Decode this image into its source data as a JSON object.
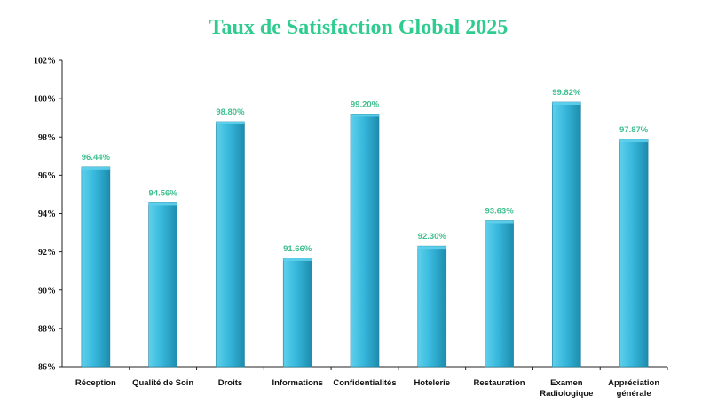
{
  "chart_data": {
    "type": "bar",
    "title": "Taux de Satisfaction Global 2025",
    "categories": [
      [
        "Réception"
      ],
      [
        "Qualité de Soin"
      ],
      [
        "Droits"
      ],
      [
        "Informations"
      ],
      [
        "Confidentialités"
      ],
      [
        "Hotelerie"
      ],
      [
        "Restauration"
      ],
      [
        "Examen",
        "Radiologique"
      ],
      [
        "Appréciation",
        "générale"
      ]
    ],
    "values": [
      96.44,
      94.56,
      98.8,
      91.66,
      99.2,
      92.3,
      93.63,
      99.82,
      97.87
    ],
    "data_labels": [
      "96.44%",
      "94.56%",
      "98.80%",
      "91.66%",
      "99.20%",
      "92.30%",
      "93.63%",
      "99.82%",
      "97.87%"
    ],
    "ylim": [
      86,
      102
    ],
    "yticks": [
      86,
      88,
      90,
      92,
      94,
      96,
      98,
      100,
      102
    ],
    "ytick_labels": [
      "86%",
      "88%",
      "90%",
      "92%",
      "94%",
      "96%",
      "98%",
      "100%",
      "102%"
    ],
    "xlabel": "",
    "ylabel": "",
    "grid": false,
    "colors": {
      "bar_light": "#5fd0ec",
      "bar_mid": "#37b8dc",
      "bar_dark": "#1d8cad",
      "bar_edge": "#1a7f9c",
      "title": "#2ecc8f",
      "data_label": "#3fbf8f",
      "axis": "#222222"
    }
  }
}
